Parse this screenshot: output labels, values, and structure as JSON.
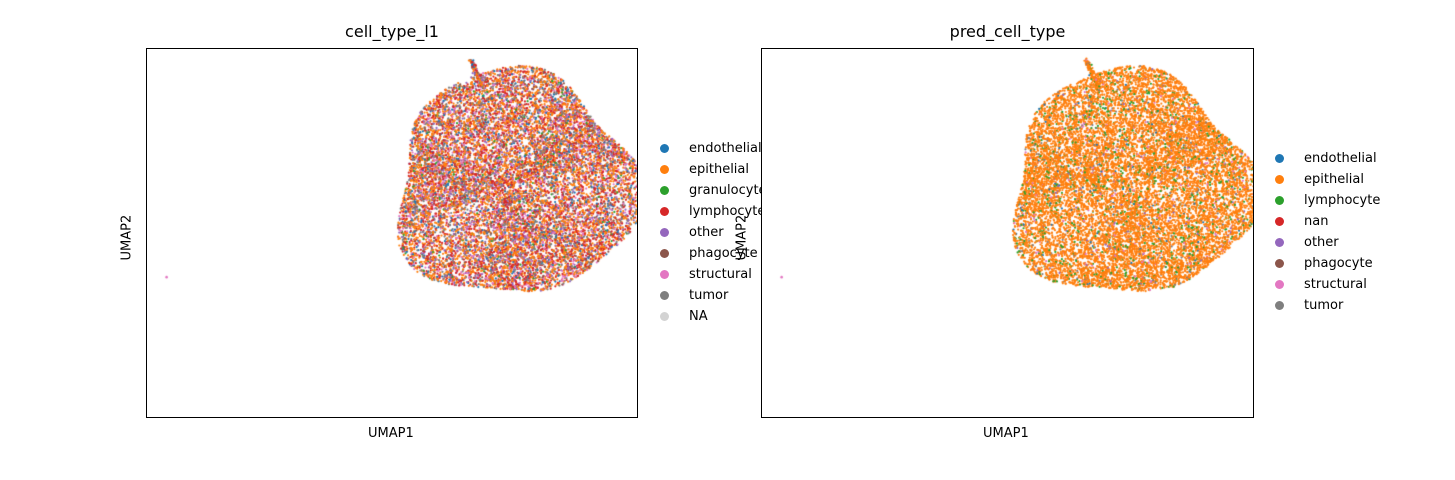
{
  "chart_data": [
    {
      "type": "scatter",
      "title": "cell_type_l1",
      "xlabel": "UMAP1",
      "ylabel": "UMAP2",
      "grid": false,
      "legend_position": "right",
      "legend": [
        {
          "label": "endothelial",
          "color": "#1f77b4"
        },
        {
          "label": "epithelial",
          "color": "#ff7f0e"
        },
        {
          "label": "granulocyte",
          "color": "#2ca02c"
        },
        {
          "label": "lymphocyte",
          "color": "#d62728"
        },
        {
          "label": "other",
          "color": "#9467bd"
        },
        {
          "label": "phagocyte",
          "color": "#8c564b"
        },
        {
          "label": "structural",
          "color": "#e377c2"
        },
        {
          "label": "tumor",
          "color": "#7f7f7f"
        },
        {
          "label": "NA",
          "color": "#d3d3d3"
        }
      ],
      "category_mix": {
        "epithelial": 0.34,
        "lymphocyte": 0.24,
        "tumor": 0.12,
        "structural": 0.1,
        "other": 0.08,
        "endothelial": 0.06,
        "phagocyte": 0.04,
        "granulocyte": 0.02
      },
      "main_cluster_center": [
        0.75,
        0.37
      ],
      "small_cluster_center": [
        0.66,
        0.05
      ],
      "outlier_point": [
        0.04,
        0.62
      ]
    },
    {
      "type": "scatter",
      "title": "pred_cell_type",
      "xlabel": "UMAP1",
      "ylabel": "UMAP2",
      "grid": false,
      "legend_position": "right",
      "legend": [
        {
          "label": "endothelial",
          "color": "#1f77b4"
        },
        {
          "label": "epithelial",
          "color": "#ff7f0e"
        },
        {
          "label": "lymphocyte",
          "color": "#2ca02c"
        },
        {
          "label": "nan",
          "color": "#d62728"
        },
        {
          "label": "other",
          "color": "#9467bd"
        },
        {
          "label": "phagocyte",
          "color": "#8c564b"
        },
        {
          "label": "structural",
          "color": "#e377c2"
        },
        {
          "label": "tumor",
          "color": "#7f7f7f"
        }
      ],
      "category_mix": {
        "epithelial": 0.86,
        "lymphocyte": 0.08,
        "tumor": 0.02,
        "structural": 0.02,
        "other": 0.01,
        "endothelial": 0.01
      },
      "main_cluster_center": [
        0.75,
        0.37
      ],
      "small_cluster_center": [
        0.66,
        0.05
      ],
      "outlier_point": [
        0.04,
        0.62
      ]
    }
  ]
}
